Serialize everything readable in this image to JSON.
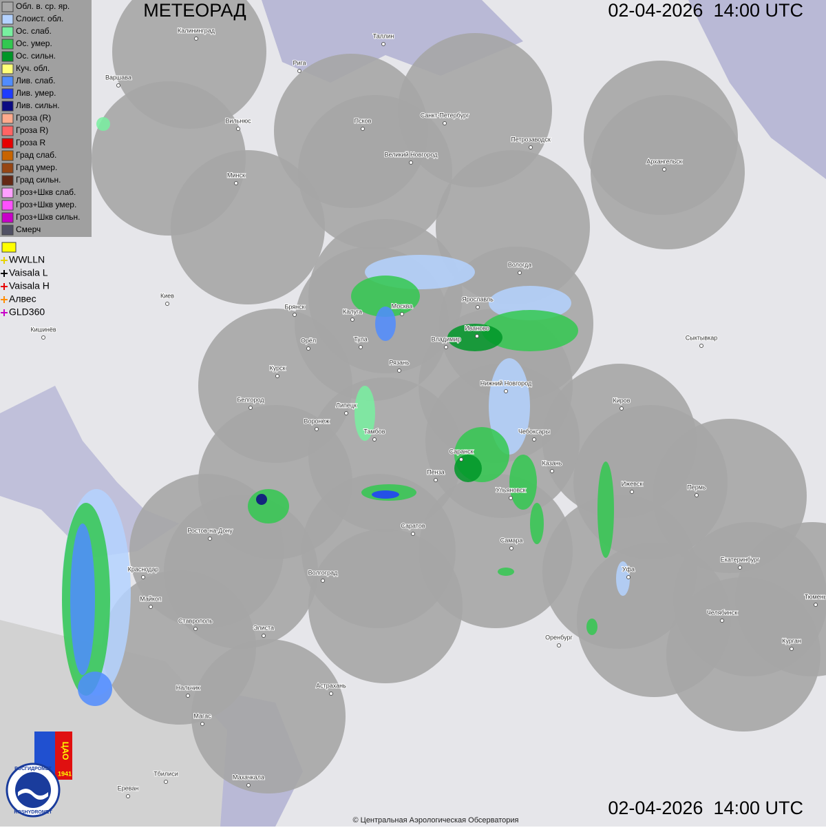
{
  "header": {
    "title": "МЕТЕОРАД",
    "timestamp": "02-04-2026  14:00 UTC"
  },
  "legend": {
    "items": [
      {
        "label": "Обл. в. ср. яр.",
        "color": "#a8a8a8"
      },
      {
        "label": "Слоист. обл.",
        "color": "#b4d2ff"
      },
      {
        "label": "Ос. слаб.",
        "color": "#78f0a0"
      },
      {
        "label": "Ос. умер.",
        "color": "#32c850"
      },
      {
        "label": "Ос. сильн.",
        "color": "#009628"
      },
      {
        "label": "Куч. обл.",
        "color": "#ffff78"
      },
      {
        "label": "Лив. слаб.",
        "color": "#508cff"
      },
      {
        "label": "Лив. умер.",
        "color": "#1e3cff"
      },
      {
        "label": "Лив. сильн.",
        "color": "#0a0a82"
      },
      {
        "label": "Гроза (R)",
        "color": "#ffaa8c"
      },
      {
        "label": "Гроза R)",
        "color": "#ff6464"
      },
      {
        "label": "Гроза R",
        "color": "#e60000"
      },
      {
        "label": "Град слаб.",
        "color": "#c86400"
      },
      {
        "label": "Град умер.",
        "color": "#964614"
      },
      {
        "label": "Град сильн.",
        "color": "#642814"
      },
      {
        "label": "Гроз+Шкв слаб.",
        "color": "#ffa0ff"
      },
      {
        "label": "Гроз+Шкв умер.",
        "color": "#ff50ff"
      },
      {
        "label": "Гроз+Шкв сильн.",
        "color": "#c800c8"
      },
      {
        "label": "Смерч",
        "color": "#505064"
      }
    ],
    "lightning": [
      {
        "label": "WWLLN",
        "color": "#e6d200"
      },
      {
        "label": "Vaisala L",
        "color": "#000000"
      },
      {
        "label": "Vaisala H",
        "color": "#e60000"
      },
      {
        "label": "Алвес",
        "color": "#ff8c00"
      },
      {
        "label": "GLD360",
        "color": "#c800c8"
      }
    ]
  },
  "cities": [
    "Калининград",
    "Таллин",
    "Рига",
    "Варшава",
    "Санкт-Петербург",
    "Петрозаводск",
    "Псков",
    "Вильнюс",
    "Великий Новгород",
    "Архангельск",
    "Минск",
    "Вологда",
    "Киев",
    "Брянск",
    "Калуга",
    "Москва",
    "Ярославль",
    "Иваново",
    "Владимир",
    "Кишинёв",
    "Орёл",
    "Тула",
    "Сыктывкар",
    "Рязань",
    "Курск",
    "Нижний Новгород",
    "Белгород",
    "Киров",
    "Липецк",
    "Воронеж",
    "Тамбов",
    "Чебоксары",
    "Саранск",
    "Казань",
    "Пенза",
    "Ижевск",
    "Пермь",
    "Ульяновск",
    "Ростов-на-Дону",
    "Саратов",
    "Самара",
    "Краснодар",
    "Уфа",
    "Екатеринбург",
    "Волгоград",
    "Майкоп",
    "Тюмень",
    "Ставрополь",
    "Челябинск",
    "Элиста",
    "Оренбург",
    "Курган",
    "Астрахань",
    "Нальчик",
    "Магас",
    "Махачкала",
    "Тбилиси",
    "Ереван"
  ],
  "logo": {
    "org": "ЦАО",
    "year": "1941",
    "ring_top": "РОСГИДРОМЕТ",
    "ring_bottom": "ROSHYDROMET"
  },
  "footer": {
    "copyright": "© Центральная Аэрологическая Обсерватория"
  }
}
